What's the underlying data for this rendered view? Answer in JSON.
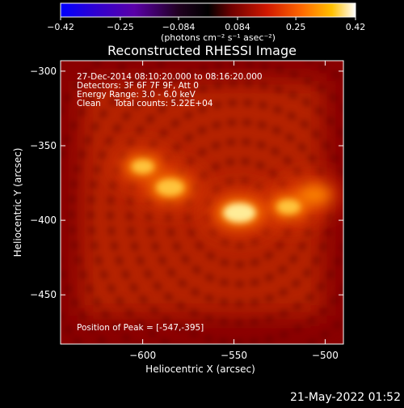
{
  "colorbar": {
    "ticks": [
      "-0.42",
      "-0.25",
      "-0.084",
      "0.084",
      "0.25",
      "0.42"
    ],
    "tick_values": [
      -0.42,
      -0.25,
      -0.084,
      0.084,
      0.25,
      0.42
    ],
    "range": [
      -0.42,
      0.42
    ],
    "units_label": "(photons cm⁻² s⁻¹ asec⁻²)",
    "colors": [
      "#0000ff",
      "#3a00c8",
      "#6a00a0",
      "#000000",
      "#7a0000",
      "#d01800",
      "#ff6a00",
      "#ffc000",
      "#ffffff"
    ]
  },
  "chart_data": {
    "type": "heatmap",
    "title": "Reconstructed RHESSI Image",
    "xlabel": "Heliocentric X (arcsec)",
    "ylabel": "Heliocentric Y (arcsec)",
    "xlim": [
      -645,
      -490
    ],
    "ylim": [
      -483,
      -293
    ],
    "xticks": [
      -600,
      -550,
      -500
    ],
    "xtick_labels": [
      "−600",
      "−550",
      "−500"
    ],
    "yticks": [
      -300,
      -350,
      -400,
      -450
    ],
    "ytick_labels": [
      "−300",
      "−350",
      "−400",
      "−450"
    ],
    "colormap": "red-temperature",
    "peak_position": [
      -547,
      -395
    ],
    "sources": [
      {
        "x": -547,
        "y": -395,
        "rel_intensity": 1.0
      },
      {
        "x": -585,
        "y": -378,
        "rel_intensity": 0.78
      },
      {
        "x": -600,
        "y": -364,
        "rel_intensity": 0.55
      },
      {
        "x": -520,
        "y": -391,
        "rel_intensity": 0.6
      },
      {
        "x": -506,
        "y": -383,
        "rel_intensity": 0.45
      }
    ],
    "annotations": [
      "27-Dec-2014 08:10:20.000 to 08:16:20.000",
      "Detectors: 3F 6F 7F 9F, Att 0",
      "Energy Range: 3.0 - 6.0 keV",
      "Clean     Total counts: 5.22E+04"
    ],
    "peak_label": "Position of Peak = [-547,-395]"
  },
  "footer": {
    "timestamp": "21-May-2022 01:52"
  }
}
